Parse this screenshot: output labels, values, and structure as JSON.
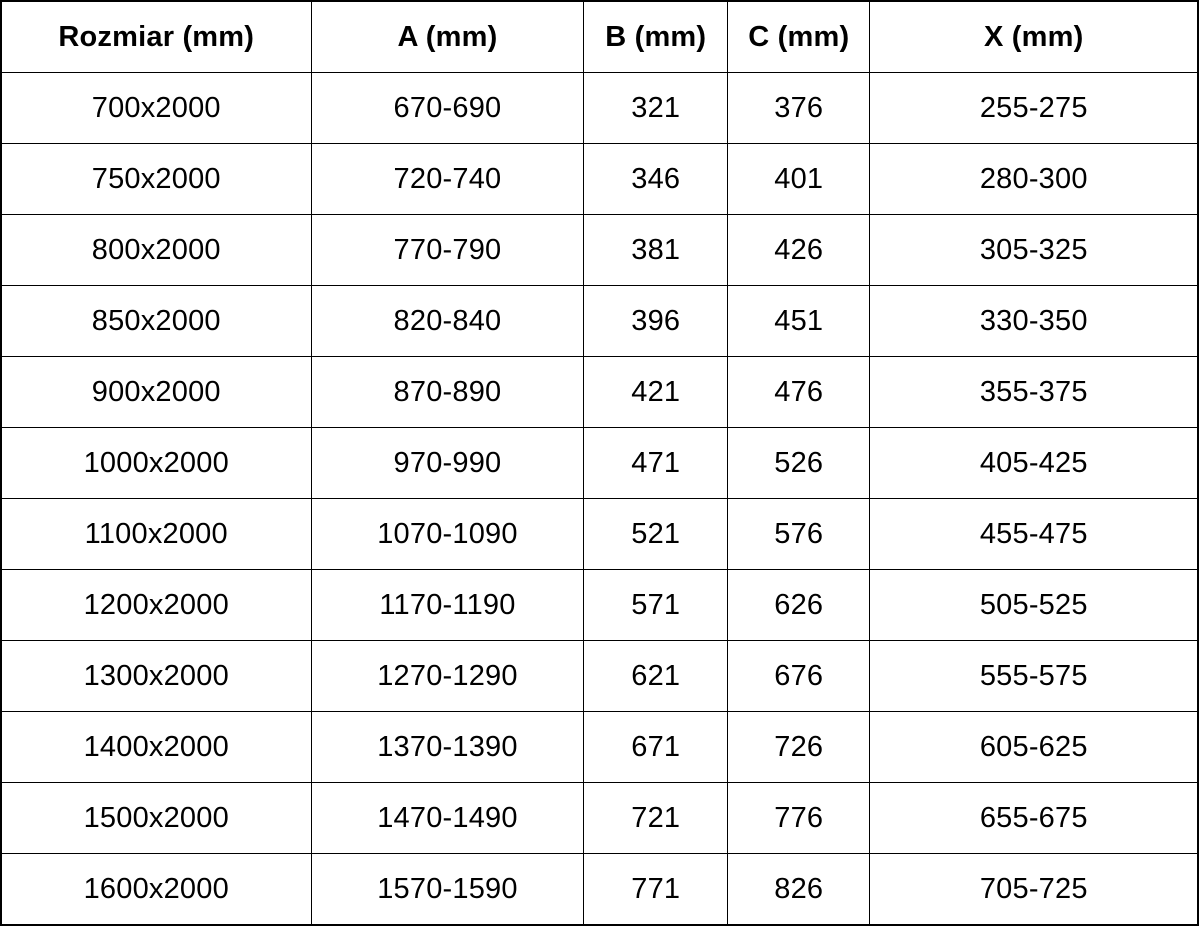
{
  "table": {
    "columns": [
      "Rozmiar (mm)",
      "A (mm)",
      "B (mm)",
      "C (mm)",
      "X (mm)"
    ],
    "rows": [
      [
        "700x2000",
        "670-690",
        "321",
        "376",
        "255-275"
      ],
      [
        "750x2000",
        "720-740",
        "346",
        "401",
        "280-300"
      ],
      [
        "800x2000",
        "770-790",
        "381",
        "426",
        "305-325"
      ],
      [
        "850x2000",
        "820-840",
        "396",
        "451",
        "330-350"
      ],
      [
        "900x2000",
        "870-890",
        "421",
        "476",
        "355-375"
      ],
      [
        "1000x2000",
        "970-990",
        "471",
        "526",
        "405-425"
      ],
      [
        "1100x2000",
        "1070-1090",
        "521",
        "576",
        "455-475"
      ],
      [
        "1200x2000",
        "1170-1190",
        "571",
        "626",
        "505-525"
      ],
      [
        "1300x2000",
        "1270-1290",
        "621",
        "676",
        "555-575"
      ],
      [
        "1400x2000",
        "1370-1390",
        "671",
        "726",
        "605-625"
      ],
      [
        "1500x2000",
        "1470-1490",
        "721",
        "776",
        "655-675"
      ],
      [
        "1600x2000",
        "1570-1590",
        "771",
        "826",
        "705-725"
      ]
    ]
  }
}
